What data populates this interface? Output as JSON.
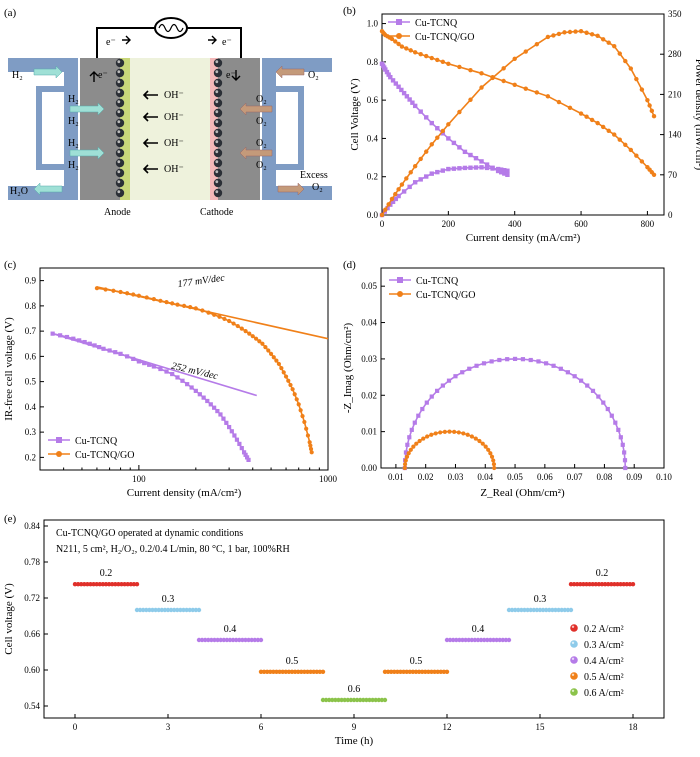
{
  "colors": {
    "cu": "#b57be8",
    "go": "#f08019",
    "axis": "#000000",
    "anode_gray": "#8c8c8c",
    "cathode_gray": "#8c8c8c",
    "membrane": "#eef2dc",
    "pipe": "#7f9cc4"
  },
  "schematic": {
    "panel": "(a)",
    "e1": "e⁻",
    "e2": "e⁻",
    "e3": "e⁻",
    "e4": "e⁻",
    "h2_in": "H₂",
    "h2_a": "H₂",
    "h2_b": "H₂",
    "h2_c": "H₂",
    "h2_d": "H₂",
    "h2o": "H₂O",
    "o2_in": "O₂",
    "o2_a": "O₂",
    "o2_b": "O₂",
    "o2_c": "O₂",
    "o2_d": "O₂",
    "excess": "Excess",
    "excess_o2": "O₂",
    "oh1": "OH⁻",
    "oh2": "OH⁻",
    "oh3": "OH⁻",
    "oh4": "OH⁻",
    "anode": "Anode",
    "cathode": "Cathode"
  },
  "chart_data": [
    {
      "panel": "(b)",
      "type": "line",
      "xlabel": "Current density (mA/cm²)",
      "ylabel": "Cell Voltage (V)",
      "y2label": "Power density (mW/cm²)",
      "xlim": [
        0,
        850
      ],
      "ylim": [
        0,
        1.05
      ],
      "y2lim": [
        0,
        350
      ],
      "xticks": [
        "0",
        "200",
        "400",
        "600",
        "800"
      ],
      "yticks": [
        "0.0",
        "0.2",
        "0.4",
        "0.6",
        "0.8",
        "1.0"
      ],
      "y2ticks": [
        "0",
        "70",
        "140",
        "210",
        "280",
        "350"
      ],
      "legend": [
        "Cu-TCNQ",
        "Cu-TCNQ/GO"
      ],
      "series": [
        {
          "name": "Cu-TCNQ",
          "axis": "voltage",
          "x": [
            0,
            10,
            25,
            50,
            75,
            100,
            150,
            200,
            250,
            300,
            350,
            378
          ],
          "y": [
            0.79,
            0.76,
            0.72,
            0.67,
            0.62,
            0.57,
            0.48,
            0.4,
            0.33,
            0.28,
            0.23,
            0.21
          ]
        },
        {
          "name": "Cu-TCNQ",
          "axis": "power",
          "x": [
            0,
            25,
            50,
            100,
            150,
            200,
            250,
            300,
            350,
            378
          ],
          "y": [
            0,
            18,
            33,
            57,
            72,
            80,
            82,
            83,
            80,
            77
          ]
        },
        {
          "name": "Cu-TCNQ/GO",
          "axis": "voltage",
          "x": [
            0,
            10,
            30,
            60,
            100,
            150,
            200,
            300,
            400,
            500,
            600,
            650,
            700,
            750,
            800,
            820
          ],
          "y": [
            0.96,
            0.94,
            0.92,
            0.88,
            0.85,
            0.82,
            0.79,
            0.74,
            0.68,
            0.62,
            0.53,
            0.48,
            0.42,
            0.34,
            0.25,
            0.21
          ]
        },
        {
          "name": "Cu-TCNQ/GO",
          "axis": "power",
          "x": [
            0,
            30,
            60,
            100,
            150,
            200,
            300,
            400,
            500,
            550,
            600,
            650,
            700,
            750,
            800,
            820
          ],
          "y": [
            0,
            28,
            53,
            85,
            123,
            158,
            222,
            272,
            310,
            318,
            320,
            312,
            294,
            255,
            200,
            172
          ]
        }
      ]
    },
    {
      "panel": "(c)",
      "type": "scatter",
      "xlabel": "Current density (mA/cm²)",
      "ylabel": "IR-free cell voltage (V)",
      "xscale": "log",
      "xlim": [
        30,
        1000
      ],
      "ylim": [
        0.15,
        0.95
      ],
      "xticks": [
        "100",
        "1000"
      ],
      "yticks": [
        "0.2",
        "0.3",
        "0.4",
        "0.5",
        "0.6",
        "0.7",
        "0.8",
        "0.9"
      ],
      "legend": [
        "Cu-TCNQ",
        "Cu-TCNQ/GO"
      ],
      "annotations": [
        "177 mV/dec",
        "252 mV/dec"
      ],
      "series": [
        {
          "name": "Cu-TCNQ",
          "x": [
            35,
            45,
            55,
            65,
            80,
            100,
            120,
            150,
            180,
            210,
            240,
            270,
            300,
            330,
            360,
            380
          ],
          "y": [
            0.69,
            0.67,
            0.65,
            0.63,
            0.61,
            0.58,
            0.56,
            0.53,
            0.49,
            0.45,
            0.41,
            0.37,
            0.32,
            0.27,
            0.22,
            0.19
          ]
        },
        {
          "name": "Cu-TCNQ/GO",
          "x": [
            60,
            80,
            100,
            130,
            160,
            200,
            250,
            300,
            350,
            400,
            450,
            500,
            550,
            600,
            650,
            700,
            750,
            800,
            820
          ],
          "y": [
            0.87,
            0.855,
            0.84,
            0.82,
            0.805,
            0.79,
            0.765,
            0.74,
            0.71,
            0.68,
            0.65,
            0.61,
            0.57,
            0.52,
            0.47,
            0.41,
            0.34,
            0.26,
            0.22
          ]
        },
        {
          "name": "177 mV/dec fit",
          "x": [
            60,
            1000
          ],
          "y": [
            0.875,
            0.67
          ]
        },
        {
          "name": "252 mV/dec fit",
          "x": [
            35,
            420
          ],
          "y": [
            0.69,
            0.445
          ]
        }
      ]
    },
    {
      "panel": "(d)",
      "type": "scatter",
      "xlabel": "Z_Real (Ohm/cm²)",
      "ylabel": "-Z_Imag (Ohm/cm²)",
      "xlim": [
        0.005,
        0.1
      ],
      "ylim": [
        0,
        0.055
      ],
      "xticks": [
        "0.01",
        "0.02",
        "0.03",
        "0.04",
        "0.05",
        "0.06",
        "0.07",
        "0.08",
        "0.09",
        "0.10"
      ],
      "yticks": [
        "0.00",
        "0.01",
        "0.02",
        "0.03",
        "0.04",
        "0.05"
      ],
      "legend": [
        "Cu-TCNQ",
        "Cu-TCNQ/GO"
      ],
      "series": [
        {
          "name": "Cu-TCNQ",
          "arc": {
            "start": 0.013,
            "end": 0.087,
            "peak": 0.03
          }
        },
        {
          "name": "Cu-TCNQ/GO",
          "arc": {
            "start": 0.013,
            "end": 0.043,
            "peak": 0.01
          }
        }
      ]
    },
    {
      "panel": "(e)",
      "type": "scatter",
      "xlabel": "Time (h)",
      "ylabel": "Cell voltage (V)",
      "xlim": [
        -1,
        19
      ],
      "ylim": [
        0.52,
        0.85
      ],
      "xticks": [
        "0",
        "3",
        "6",
        "9",
        "12",
        "15",
        "18"
      ],
      "yticks": [
        "0.54",
        "0.60",
        "0.66",
        "0.72",
        "0.78",
        "0.84"
      ],
      "title": "Cu-TCNQ/GO operated at dynamic conditions",
      "subtitle": "N211, 5 cm², H₂/O₂, 0.2/0.4 L/min, 80 °C, 1 bar, 100%RH",
      "legend": [
        "0.2 A/cm²",
        "0.3 A/cm²",
        "0.4 A/cm²",
        "0.5 A/cm²",
        "0.6 A/cm²"
      ],
      "segments": [
        {
          "label": "0.2",
          "x0": 0,
          "x1": 2,
          "y": 0.743,
          "level": 0
        },
        {
          "label": "0.3",
          "x0": 2,
          "x1": 4,
          "y": 0.7,
          "level": 1
        },
        {
          "label": "0.4",
          "x0": 4,
          "x1": 6,
          "y": 0.65,
          "level": 2
        },
        {
          "label": "0.5",
          "x0": 6,
          "x1": 8,
          "y": 0.597,
          "level": 3
        },
        {
          "label": "0.6",
          "x0": 8,
          "x1": 10,
          "y": 0.55,
          "level": 4
        },
        {
          "label": "0.5",
          "x0": 10,
          "x1": 12,
          "y": 0.597,
          "level": 3
        },
        {
          "label": "0.4",
          "x0": 12,
          "x1": 14,
          "y": 0.65,
          "level": 2
        },
        {
          "label": "0.3",
          "x0": 14,
          "x1": 16,
          "y": 0.7,
          "level": 1
        },
        {
          "label": "0.2",
          "x0": 16,
          "x1": 18,
          "y": 0.743,
          "level": 0
        }
      ],
      "level_colors": [
        "#e0302a",
        "#8ecbea",
        "#b57be8",
        "#f08019",
        "#8bc34a"
      ]
    }
  ]
}
